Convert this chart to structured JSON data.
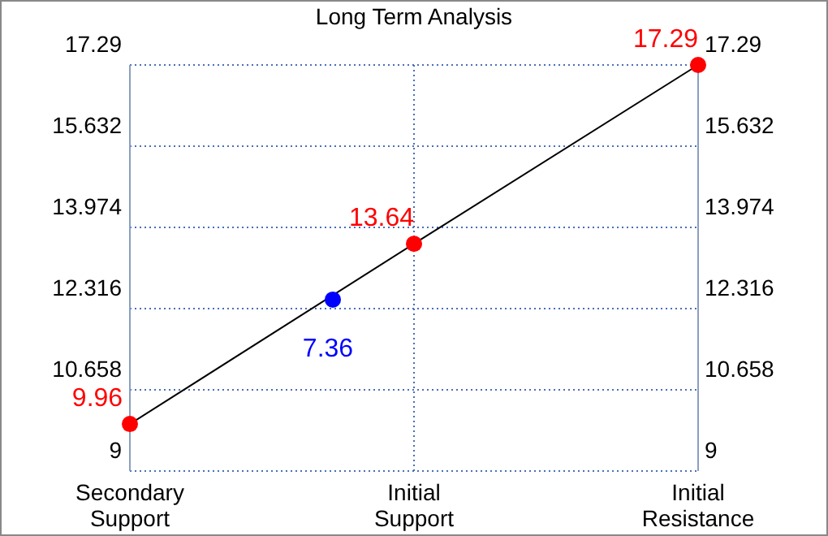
{
  "chart_data": {
    "type": "line",
    "title": "Long Term Analysis",
    "categories": [
      "Secondary Support",
      null,
      null,
      null,
      null,
      null,
      null,
      "Initial Support",
      null,
      null,
      null,
      null,
      null,
      null,
      "Initial Resistance"
    ],
    "ylim": [
      9,
      17.29
    ],
    "yticks": [
      9,
      10.658,
      12.316,
      13.974,
      15.632,
      17.29
    ],
    "y2lim": [
      9,
      17.29
    ],
    "y2ticks": [
      9,
      10.658,
      12.316,
      13.974,
      15.632,
      17.29
    ],
    "grid": true,
    "series": [
      {
        "color": "#000000",
        "values": [
          9.96,
          null,
          null,
          null,
          null,
          null,
          null,
          13.64,
          null,
          null,
          null,
          null,
          null,
          null,
          17.29
        ]
      },
      {
        "type": "scatter",
        "color": "#ff0000",
        "marker": "circle",
        "values": [
          9.96,
          null,
          null,
          null,
          null,
          null,
          null,
          13.64,
          null,
          null,
          null,
          null,
          null,
          null,
          17.29
        ],
        "value_labels": [
          "9.96",
          null,
          null,
          null,
          null,
          null,
          null,
          "13.64",
          null,
          null,
          null,
          null,
          null,
          null,
          "17.29"
        ]
      },
      {
        "type": "scatter",
        "color": "#0000ff",
        "marker": "circle",
        "values": [
          null,
          null,
          null,
          null,
          null,
          12.5,
          null,
          null,
          null,
          null,
          null,
          null,
          null,
          null,
          null
        ]
      }
    ],
    "annotations": [
      "7.36"
    ]
  }
}
